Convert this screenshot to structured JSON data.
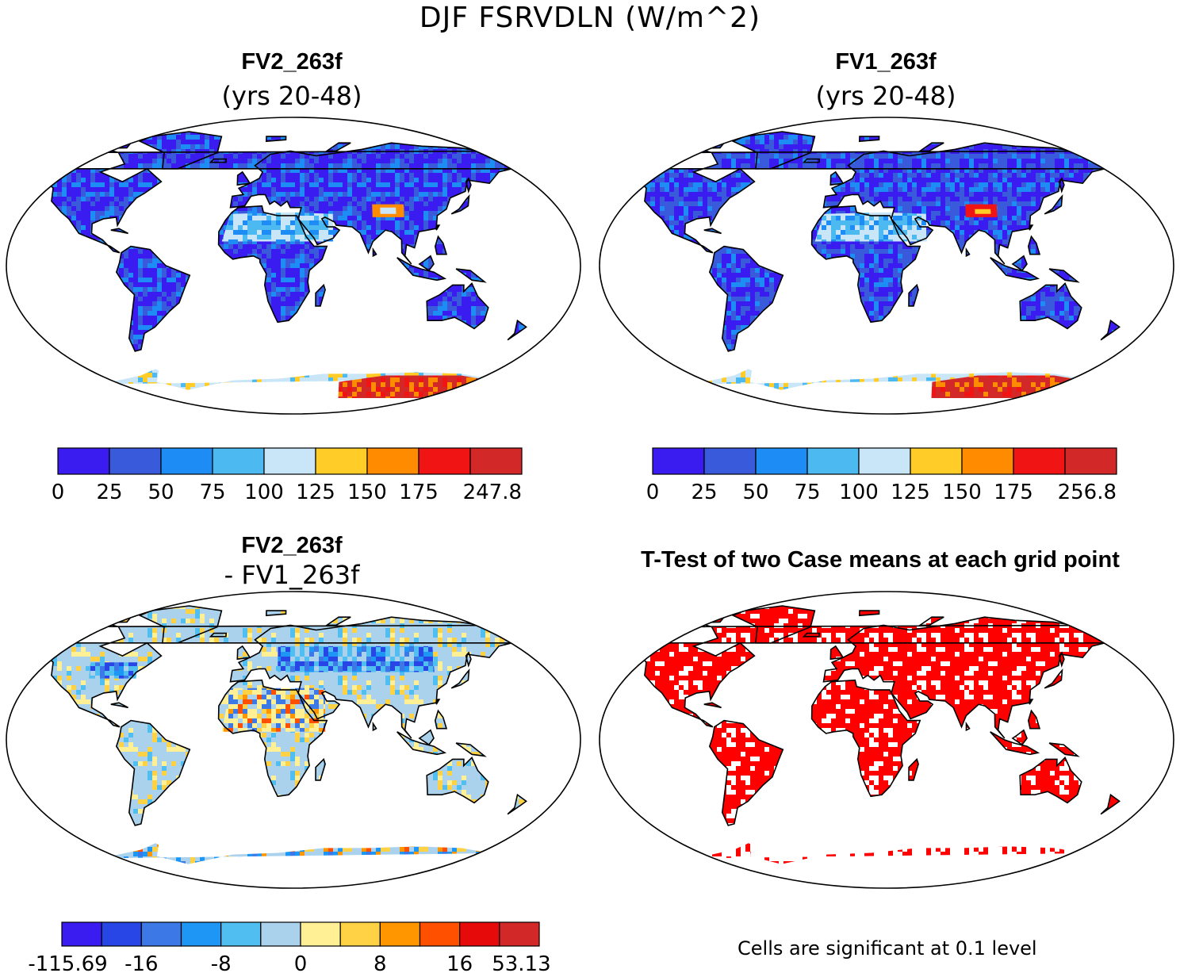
{
  "figure": {
    "title": "DJF FSRVDLN (W/m^2)",
    "panels": [
      {
        "title": "FV2_263f",
        "subtitle": "(yrs 20-48)"
      },
      {
        "title": "FV1_263f",
        "subtitle": "(yrs 20-48)"
      },
      {
        "title": "FV2_263f",
        "subtitle": "- FV1_263f"
      },
      {
        "title": "T-Test of two Case means at each grid point",
        "subtitle": ""
      }
    ],
    "footnote": "Cells are significant at 0.1 level"
  },
  "chart_data": [
    {
      "type": "heatmap",
      "title": "FV2_263f (yrs 20-48)",
      "projection": "Robinson",
      "units": "W/m^2",
      "colorbar": {
        "tick_labels": [
          "0",
          "25",
          "50",
          "75",
          "100",
          "125",
          "150",
          "175",
          "247.8"
        ],
        "colors": [
          "#3a1cf0",
          "#3a5adc",
          "#1e8cf5",
          "#4cbaf0",
          "#c8e6f8",
          "#ffcc28",
          "#ff8c00",
          "#f01414",
          "#d22828"
        ]
      },
      "features": {
        "snow_desert_bright": "Sahara, Arabia, Tibet",
        "antarctica_high": "red 175-247.8"
      }
    },
    {
      "type": "heatmap",
      "title": "FV1_263f (yrs 20-48)",
      "projection": "Robinson",
      "units": "W/m^2",
      "colorbar": {
        "tick_labels": [
          "0",
          "25",
          "50",
          "75",
          "100",
          "125",
          "150",
          "175",
          "256.8"
        ],
        "colors": [
          "#3a1cf0",
          "#3a5adc",
          "#1e8cf5",
          "#4cbaf0",
          "#c8e6f8",
          "#ffcc28",
          "#ff8c00",
          "#f01414",
          "#d22828"
        ]
      }
    },
    {
      "type": "heatmap",
      "title": "FV2_263f - FV1_263f",
      "projection": "Robinson",
      "units": "W/m^2",
      "colorbar": {
        "tick_labels": [
          "-115.69",
          "-16",
          "-8",
          "0",
          "8",
          "16",
          "53.13"
        ],
        "colors": [
          "#3a1cf0",
          "#2846e6",
          "#3c78e6",
          "#1e96f5",
          "#50bef0",
          "#aad2ec",
          "#fff096",
          "#ffd246",
          "#ff9600",
          "#ff5000",
          "#e60a0a",
          "#d22828"
        ]
      }
    },
    {
      "type": "heatmap",
      "title": "T-Test of two Case means at each grid point",
      "projection": "Robinson",
      "significance_level": 0.1,
      "significant_color": "#ff0000"
    }
  ]
}
